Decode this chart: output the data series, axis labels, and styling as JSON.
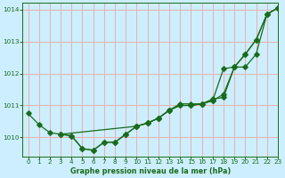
{
  "title": "Graphe pression niveau de la mer (hPa)",
  "background_color": "#cceeff",
  "grid_color": "#e8b0b0",
  "line_color": "#1a6b1a",
  "xlim": [
    -0.5,
    23
  ],
  "ylim": [
    1009.4,
    1014.2
  ],
  "yticks": [
    1010,
    1011,
    1012,
    1013,
    1014
  ],
  "xticks": [
    0,
    1,
    2,
    3,
    4,
    5,
    6,
    7,
    8,
    9,
    10,
    11,
    12,
    13,
    14,
    15,
    16,
    17,
    18,
    19,
    20,
    21,
    22,
    23
  ],
  "series1_x": [
    0,
    1,
    2,
    3,
    4,
    5,
    6,
    7,
    8,
    9,
    10,
    11,
    12,
    13,
    14,
    15,
    16,
    17,
    18,
    19,
    20,
    21,
    22,
    23
  ],
  "series1_y": [
    1010.75,
    1010.4,
    1010.15,
    1010.1,
    1010.05,
    1009.65,
    1009.6,
    1009.85,
    1009.85,
    1010.1,
    1010.35,
    1010.45,
    1010.6,
    1010.85,
    1011.05,
    1011.05,
    1011.05,
    1011.2,
    1011.25,
    1012.2,
    1012.6,
    1013.05,
    1013.85,
    1014.05
  ],
  "series2_x": [
    3,
    4,
    5,
    6,
    7,
    8,
    9,
    10,
    11,
    12,
    13,
    14,
    15,
    16,
    17,
    18,
    19,
    20,
    21,
    22,
    23
  ],
  "series2_y": [
    1010.1,
    1010.05,
    1009.65,
    1009.6,
    1009.85,
    1009.85,
    1010.1,
    1010.35,
    1010.45,
    1010.6,
    1010.85,
    1011.0,
    1011.0,
    1011.05,
    1011.15,
    1011.35,
    1012.2,
    1012.2,
    1012.6,
    1013.85,
    1014.05
  ],
  "series3_x": [
    3,
    10,
    11,
    12,
    13,
    14,
    15,
    16,
    17,
    18,
    19,
    20,
    21,
    22,
    23
  ],
  "series3_y": [
    1010.1,
    1010.35,
    1010.45,
    1010.6,
    1010.85,
    1011.0,
    1011.0,
    1011.05,
    1011.15,
    1012.15,
    1012.2,
    1012.6,
    1013.05,
    1013.85,
    1014.05
  ]
}
